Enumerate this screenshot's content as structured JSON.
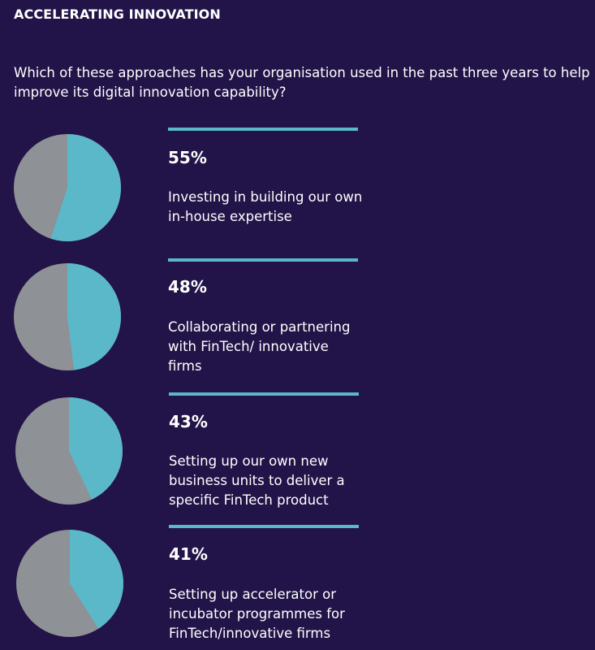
{
  "heading": "ACCELERATING INNOVATION",
  "question": "Which of these approaches has your organisation used in the past three years to help improve its digital innovation capability?",
  "colors": {
    "background": "#221448",
    "accent": "#5bb8c8",
    "remainder": "#8e9196",
    "text": "#ffffff"
  },
  "chart_data": {
    "type": "pie",
    "items": [
      {
        "value": 55,
        "value_label": "55%",
        "label": "Investing in building our own in-house expertise"
      },
      {
        "value": 48,
        "value_label": "48%",
        "label": "Collaborating or partnering with FinTech/ innovative firms"
      },
      {
        "value": 43,
        "value_label": "43%",
        "label": "Setting up our own new business units to deliver a specific FinTech product"
      },
      {
        "value": 41,
        "value_label": "41%",
        "label": "Setting up accelerator or incubator programmes for FinTech/innovative firms"
      }
    ]
  }
}
